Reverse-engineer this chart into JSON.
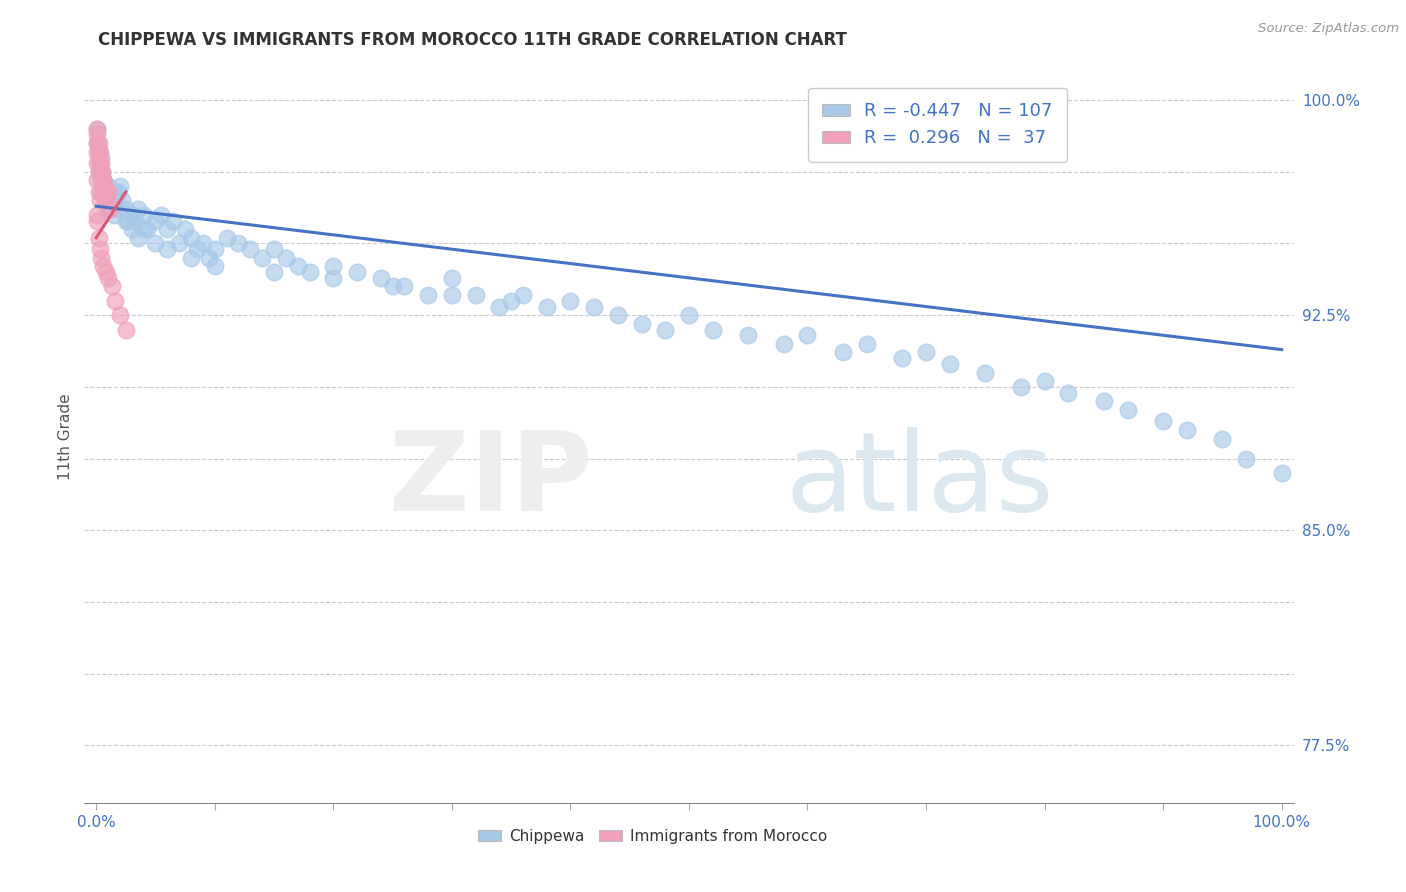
{
  "title": "CHIPPEWA VS IMMIGRANTS FROM MOROCCO 11TH GRADE CORRELATION CHART",
  "ylabel": "11th Grade",
  "source": "Source: ZipAtlas.com",
  "legend_r1": "R = -0.447",
  "legend_n1": "N = 107",
  "legend_r2": "R =  0.296",
  "legend_n2": "N =  37",
  "blue_color": "#a8c8e8",
  "pink_color": "#f0a0b8",
  "blue_line_color": "#4472c4",
  "pink_line_color": "#e05878",
  "background_color": "#ffffff",
  "grid_color": "#cccccc",
  "blue_scatter_x": [
    0.001,
    0.001,
    0.002,
    0.002,
    0.003,
    0.004,
    0.004,
    0.005,
    0.005,
    0.006,
    0.007,
    0.007,
    0.008,
    0.009,
    0.01,
    0.01,
    0.011,
    0.012,
    0.013,
    0.015,
    0.016,
    0.018,
    0.02,
    0.022,
    0.025,
    0.027,
    0.03,
    0.033,
    0.035,
    0.04,
    0.043,
    0.05,
    0.055,
    0.06,
    0.065,
    0.07,
    0.075,
    0.08,
    0.085,
    0.09,
    0.095,
    0.1,
    0.11,
    0.12,
    0.13,
    0.14,
    0.15,
    0.16,
    0.17,
    0.18,
    0.2,
    0.22,
    0.24,
    0.26,
    0.28,
    0.3,
    0.32,
    0.34,
    0.36,
    0.38,
    0.4,
    0.42,
    0.44,
    0.46,
    0.48,
    0.5,
    0.52,
    0.55,
    0.58,
    0.6,
    0.63,
    0.65,
    0.68,
    0.7,
    0.72,
    0.75,
    0.78,
    0.8,
    0.82,
    0.85,
    0.87,
    0.9,
    0.92,
    0.95,
    0.97,
    1.0,
    0.002,
    0.003,
    0.004,
    0.006,
    0.008,
    0.01,
    0.015,
    0.02,
    0.025,
    0.03,
    0.035,
    0.04,
    0.05,
    0.06,
    0.08,
    0.1,
    0.15,
    0.2,
    0.25,
    0.3,
    0.35
  ],
  "blue_scatter_y": [
    0.985,
    0.99,
    0.978,
    0.982,
    0.975,
    0.98,
    0.972,
    0.975,
    0.968,
    0.972,
    0.97,
    0.965,
    0.968,
    0.962,
    0.97,
    0.965,
    0.968,
    0.962,
    0.965,
    0.968,
    0.965,
    0.968,
    0.97,
    0.965,
    0.962,
    0.958,
    0.96,
    0.958,
    0.962,
    0.96,
    0.955,
    0.958,
    0.96,
    0.955,
    0.958,
    0.95,
    0.955,
    0.952,
    0.948,
    0.95,
    0.945,
    0.948,
    0.952,
    0.95,
    0.948,
    0.945,
    0.948,
    0.945,
    0.942,
    0.94,
    0.942,
    0.94,
    0.938,
    0.935,
    0.932,
    0.938,
    0.932,
    0.928,
    0.932,
    0.928,
    0.93,
    0.928,
    0.925,
    0.922,
    0.92,
    0.925,
    0.92,
    0.918,
    0.915,
    0.918,
    0.912,
    0.915,
    0.91,
    0.912,
    0.908,
    0.905,
    0.9,
    0.902,
    0.898,
    0.895,
    0.892,
    0.888,
    0.885,
    0.882,
    0.875,
    0.87,
    0.975,
    0.978,
    0.968,
    0.972,
    0.965,
    0.968,
    0.96,
    0.962,
    0.958,
    0.955,
    0.952,
    0.955,
    0.95,
    0.948,
    0.945,
    0.942,
    0.94,
    0.938,
    0.935,
    0.932,
    0.93
  ],
  "pink_scatter_x": [
    0.0005,
    0.0005,
    0.001,
    0.001,
    0.001,
    0.002,
    0.002,
    0.002,
    0.003,
    0.003,
    0.004,
    0.004,
    0.005,
    0.005,
    0.006,
    0.006,
    0.007,
    0.007,
    0.008,
    0.009,
    0.01,
    0.012,
    0.001,
    0.002,
    0.003,
    0.0005,
    0.001,
    0.002,
    0.003,
    0.004,
    0.006,
    0.008,
    0.01,
    0.013,
    0.016,
    0.02,
    0.025
  ],
  "pink_scatter_y": [
    0.99,
    0.985,
    0.988,
    0.982,
    0.978,
    0.985,
    0.98,
    0.975,
    0.982,
    0.978,
    0.978,
    0.974,
    0.975,
    0.97,
    0.972,
    0.968,
    0.97,
    0.965,
    0.968,
    0.965,
    0.968,
    0.962,
    0.972,
    0.968,
    0.965,
    0.96,
    0.958,
    0.952,
    0.948,
    0.945,
    0.942,
    0.94,
    0.938,
    0.935,
    0.93,
    0.925,
    0.92
  ],
  "blue_trend_x": [
    0.0,
    1.0
  ],
  "blue_trend_y": [
    0.963,
    0.913
  ],
  "pink_trend_x": [
    0.0,
    0.025
  ],
  "pink_trend_y": [
    0.952,
    0.968
  ],
  "yticks": [
    0.775,
    0.8,
    0.825,
    0.85,
    0.875,
    0.9,
    0.925,
    0.95,
    0.975,
    1.0
  ],
  "ytick_labels": [
    "77.5%",
    "",
    "",
    "85.0%",
    "",
    "",
    "92.5%",
    "",
    "",
    "100.0%"
  ],
  "ylim": [
    0.755,
    1.01
  ],
  "xlim": [
    -0.01,
    1.01
  ],
  "xtick_positions": [
    0.0,
    0.1,
    0.2,
    0.3,
    0.4,
    0.5,
    0.6,
    0.7,
    0.8,
    0.9,
    1.0
  ]
}
